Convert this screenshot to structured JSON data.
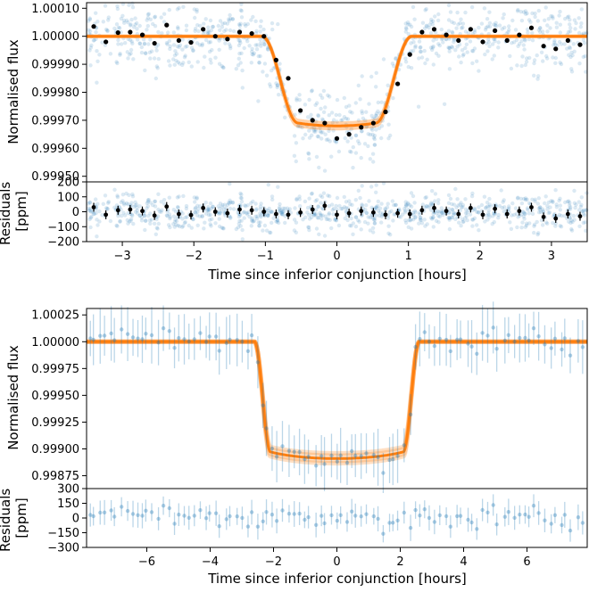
{
  "chart_data": [
    {
      "type": "scatter",
      "panel": "top-lightcurve",
      "ylabel": "Normalised flux",
      "xlim": [
        -3.5,
        3.5
      ],
      "ylim": [
        0.99948,
        1.00012
      ],
      "yticks": [
        0.9995,
        0.9996,
        0.9997,
        0.9998,
        0.9999,
        1.0,
        1.0001
      ],
      "ytick_labels": [
        "0.99950",
        "0.99960",
        "0.99970",
        "0.99980",
        "0.99990",
        "1.00000",
        "1.00010"
      ],
      "model": {
        "depth": 0.00032,
        "t_half_total": 1.05,
        "t_half_flat": 0.55,
        "limb_dark": 0.22,
        "color": "#ff7f0e"
      },
      "raw_color": "#1f77b4",
      "binned_color": "#000000",
      "binned": [
        {
          "x": -3.4,
          "y": 1.000035,
          "err": 7e-06
        },
        {
          "x": -3.23,
          "y": 0.99998,
          "err": 7e-06
        },
        {
          "x": -3.06,
          "y": 1.000013,
          "err": 7e-06
        },
        {
          "x": -2.89,
          "y": 1.000015,
          "err": 7e-06
        },
        {
          "x": -2.72,
          "y": 1.000005,
          "err": 7e-06
        },
        {
          "x": -2.55,
          "y": 0.999975,
          "err": 7e-06
        },
        {
          "x": -2.38,
          "y": 1.00004,
          "err": 7e-06
        },
        {
          "x": -2.21,
          "y": 0.999985,
          "err": 7e-06
        },
        {
          "x": -2.04,
          "y": 0.999978,
          "err": 7e-06
        },
        {
          "x": -1.87,
          "y": 1.000025,
          "err": 7e-06
        },
        {
          "x": -1.7,
          "y": 1.0,
          "err": 7e-06
        },
        {
          "x": -1.53,
          "y": 0.99999,
          "err": 7e-06
        },
        {
          "x": -1.36,
          "y": 1.000015,
          "err": 7e-06
        },
        {
          "x": -1.19,
          "y": 1.00001,
          "err": 7e-06
        },
        {
          "x": -1.02,
          "y": 1.0,
          "err": 7e-06
        },
        {
          "x": -0.85,
          "y": 0.999915,
          "err": 7e-06
        },
        {
          "x": -0.68,
          "y": 0.99985,
          "err": 7e-06
        },
        {
          "x": -0.51,
          "y": 0.999735,
          "err": 7e-06
        },
        {
          "x": -0.34,
          "y": 0.9997,
          "err": 7e-06
        },
        {
          "x": -0.17,
          "y": 0.99969,
          "err": 7e-06
        },
        {
          "x": 0.0,
          "y": 0.999635,
          "err": 7e-06
        },
        {
          "x": 0.17,
          "y": 0.99965,
          "err": 7e-06
        },
        {
          "x": 0.34,
          "y": 0.999675,
          "err": 7e-06
        },
        {
          "x": 0.51,
          "y": 0.99969,
          "err": 7e-06
        },
        {
          "x": 0.68,
          "y": 0.99973,
          "err": 7e-06
        },
        {
          "x": 0.85,
          "y": 0.99983,
          "err": 7e-06
        },
        {
          "x": 1.02,
          "y": 0.999935,
          "err": 7e-06
        },
        {
          "x": 1.19,
          "y": 1.000015,
          "err": 7e-06
        },
        {
          "x": 1.36,
          "y": 1.000025,
          "err": 7e-06
        },
        {
          "x": 1.53,
          "y": 1.000005,
          "err": 7e-06
        },
        {
          "x": 1.7,
          "y": 0.999985,
          "err": 7e-06
        },
        {
          "x": 1.87,
          "y": 1.000025,
          "err": 7e-06
        },
        {
          "x": 2.04,
          "y": 0.99998,
          "err": 7e-06
        },
        {
          "x": 2.21,
          "y": 1.00002,
          "err": 7e-06
        },
        {
          "x": 2.38,
          "y": 0.999985,
          "err": 7e-06
        },
        {
          "x": 2.55,
          "y": 1.000005,
          "err": 7e-06
        },
        {
          "x": 2.72,
          "y": 1.00003,
          "err": 7e-06
        },
        {
          "x": 2.89,
          "y": 0.999965,
          "err": 7e-06
        },
        {
          "x": 3.06,
          "y": 0.999955,
          "err": 7e-06
        },
        {
          "x": 3.23,
          "y": 0.999985,
          "err": 7e-06
        },
        {
          "x": 3.4,
          "y": 0.99997,
          "err": 7e-06
        }
      ]
    },
    {
      "type": "scatter",
      "panel": "top-residuals",
      "ylabel": "Residuals [ppm]",
      "xlabel": "Time since inferior conjunction [hours]",
      "xlim": [
        -3.5,
        3.5
      ],
      "ylim": [
        -200,
        200
      ],
      "xticks": [
        -3,
        -2,
        -1,
        0,
        1,
        2,
        3
      ],
      "xtick_labels": [
        "−3",
        "−2",
        "−1",
        "0",
        "1",
        "2",
        "3"
      ],
      "yticks": [
        -200,
        -100,
        0,
        100,
        200
      ],
      "ytick_labels": [
        "−200",
        "−100",
        "0",
        "100",
        "200"
      ],
      "binned_residuals": [
        {
          "x": -3.4,
          "y": 30
        },
        {
          "x": -3.23,
          "y": -20
        },
        {
          "x": -3.06,
          "y": 10
        },
        {
          "x": -2.89,
          "y": 15
        },
        {
          "x": -2.72,
          "y": 5
        },
        {
          "x": -2.55,
          "y": -25
        },
        {
          "x": -2.38,
          "y": 35
        },
        {
          "x": -2.21,
          "y": -15
        },
        {
          "x": -2.04,
          "y": -22
        },
        {
          "x": -1.87,
          "y": 25
        },
        {
          "x": -1.7,
          "y": 0
        },
        {
          "x": -1.53,
          "y": -10
        },
        {
          "x": -1.36,
          "y": 15
        },
        {
          "x": -1.19,
          "y": 10
        },
        {
          "x": -1.02,
          "y": 0
        },
        {
          "x": -0.85,
          "y": -15
        },
        {
          "x": -0.68,
          "y": -20
        },
        {
          "x": -0.51,
          "y": -5
        },
        {
          "x": -0.34,
          "y": 15
        },
        {
          "x": -0.17,
          "y": 40
        },
        {
          "x": 0.0,
          "y": -20
        },
        {
          "x": 0.17,
          "y": -10
        },
        {
          "x": 0.34,
          "y": 5
        },
        {
          "x": 0.51,
          "y": -5
        },
        {
          "x": 0.68,
          "y": -20
        },
        {
          "x": 0.85,
          "y": -10
        },
        {
          "x": 1.02,
          "y": -15
        },
        {
          "x": 1.19,
          "y": 10
        },
        {
          "x": 1.36,
          "y": 25
        },
        {
          "x": 1.53,
          "y": 5
        },
        {
          "x": 1.7,
          "y": -15
        },
        {
          "x": 1.87,
          "y": 25
        },
        {
          "x": 2.04,
          "y": -20
        },
        {
          "x": 2.21,
          "y": 20
        },
        {
          "x": 2.38,
          "y": -15
        },
        {
          "x": 2.55,
          "y": 5
        },
        {
          "x": 2.72,
          "y": 30
        },
        {
          "x": 2.89,
          "y": -35
        },
        {
          "x": 3.06,
          "y": -45
        },
        {
          "x": 3.23,
          "y": -15
        },
        {
          "x": 3.4,
          "y": -30
        }
      ]
    },
    {
      "type": "scatter",
      "panel": "bottom-lightcurve",
      "ylabel": "Normalised flux",
      "xlim": [
        -7.9,
        7.9
      ],
      "ylim": [
        0.99863,
        1.00031
      ],
      "yticks": [
        0.99875,
        0.999,
        0.99925,
        0.9995,
        0.99975,
        1.0,
        1.00025
      ],
      "ytick_labels": [
        "0.99875",
        "0.99900",
        "0.99925",
        "0.99950",
        "0.99975",
        "1.00000",
        "1.00025"
      ],
      "model": {
        "depth": 0.00109,
        "t_half_total": 2.6,
        "t_half_flat": 2.1,
        "limb_dark": 0.14,
        "color": "#ff7f0e"
      },
      "point_color": "#1f77b4",
      "noise_ppm": 55,
      "n_points": 95
    },
    {
      "type": "scatter",
      "panel": "bottom-residuals",
      "ylabel": "Residuals [ppm]",
      "xlabel": "Time since inferior conjunction [hours]",
      "xlim": [
        -7.9,
        7.9
      ],
      "ylim": [
        -300,
        300
      ],
      "xticks": [
        -6,
        -4,
        -2,
        0,
        2,
        4,
        6
      ],
      "xtick_labels": [
        "−6",
        "−4",
        "−2",
        "0",
        "2",
        "4",
        "6"
      ],
      "yticks": [
        -300,
        -150,
        0,
        150,
        300
      ],
      "ytick_labels": [
        "−300",
        "−150",
        "0",
        "150",
        "300"
      ]
    }
  ]
}
